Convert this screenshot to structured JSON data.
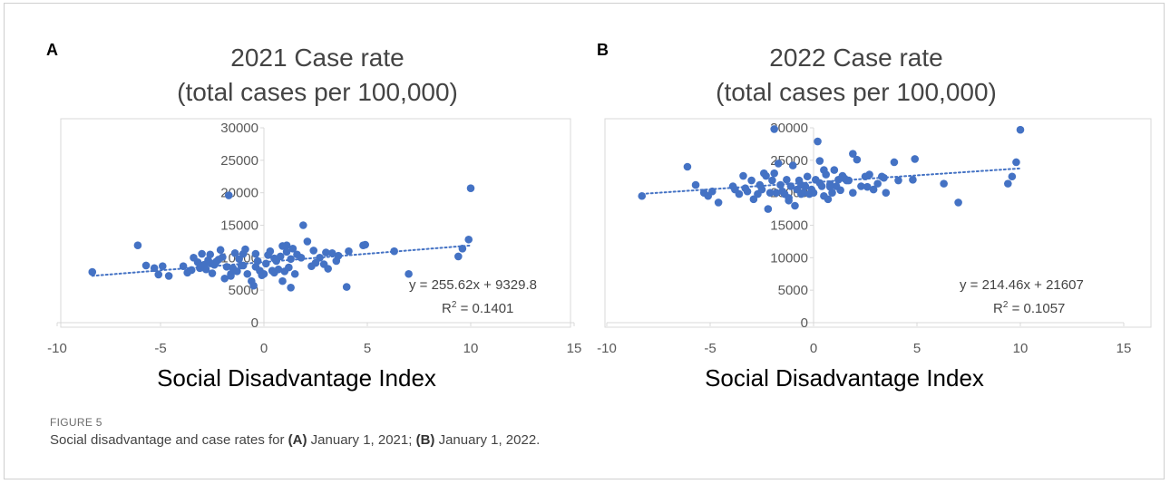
{
  "panels": [
    {
      "letter": "A",
      "title_line1": "2021 Case rate",
      "title_line2": "(total cases per 100,000)",
      "xlabel": "Social Disadvantage Index",
      "equation": "y = 255.62x + 9329.8",
      "r2_prefix": "R",
      "r2_sup": "2",
      "r2_value": " = 0.1401"
    },
    {
      "letter": "B",
      "title_line1": "2022 Case rate",
      "title_line2": "(total cases per 100,000)",
      "xlabel": "Social Disadvantage Index",
      "equation": "y = 214.46x + 21607",
      "r2_prefix": "R",
      "r2_sup": "2",
      "r2_value": " = 0.1057"
    }
  ],
  "figure": {
    "label": "FIGURE 5",
    "caption_pre": "Social disadvantage and case rates for ",
    "caption_a": "(A)",
    "caption_mid": " January 1, 2021; ",
    "caption_b": "(B)",
    "caption_post": " January 1, 2022."
  },
  "colors": {
    "marker": "#4472C4",
    "trend": "#4472C4",
    "axis": "#d9d9d9"
  },
  "chart_data": [
    {
      "type": "scatter",
      "title": "2021 Case rate (total cases per 100,000)",
      "xlabel": "Social Disadvantage Index",
      "ylabel": "",
      "xlim": [
        -10,
        15
      ],
      "ylim": [
        0,
        30000
      ],
      "xticks": [
        -10,
        -5,
        0,
        5,
        10,
        15
      ],
      "yticks": [
        0,
        5000,
        10000,
        15000,
        20000,
        25000,
        30000
      ],
      "grid": "horizontal",
      "trendline": {
        "slope": 255.62,
        "intercept": 9329.8,
        "r2": 0.1401,
        "x_range": [
          -8.3,
          10
        ]
      },
      "x": [
        -8.3,
        -6.1,
        -5.7,
        -5.3,
        -5.1,
        -4.9,
        -4.6,
        -3.9,
        -3.7,
        -3.5,
        -3.4,
        -3.2,
        -3.0,
        -2.9,
        -2.8,
        -2.7,
        -2.6,
        -2.5,
        -2.4,
        -2.3,
        -2.1,
        -2.0,
        -1.9,
        -1.8,
        -1.7,
        -1.6,
        -1.5,
        -1.4,
        -1.3,
        -1.2,
        -1.1,
        -1.0,
        -0.9,
        -0.8,
        -0.6,
        -0.5,
        -0.4,
        -0.3,
        -0.2,
        -0.1,
        0.0,
        0.1,
        0.2,
        0.3,
        0.4,
        0.5,
        0.6,
        0.7,
        0.8,
        0.9,
        1.0,
        1.1,
        1.2,
        1.3,
        1.4,
        1.5,
        1.6,
        1.8,
        1.9,
        2.1,
        2.3,
        2.5,
        2.7,
        2.9,
        3.1,
        3.3,
        3.5,
        3.6,
        4.0,
        4.1,
        4.8,
        4.9,
        6.3,
        7.0,
        9.4,
        9.6,
        9.9,
        10.0,
        -1.6,
        -2.2,
        -0.4,
        0.9,
        1.3,
        2.4,
        3.0,
        -3.1,
        -2.6,
        -1.0,
        0.5,
        1.1
      ],
      "y": [
        7800,
        11900,
        8800,
        8400,
        7400,
        8700,
        7200,
        8700,
        7700,
        8100,
        10000,
        9300,
        10600,
        8900,
        8200,
        9600,
        10500,
        7600,
        8900,
        9400,
        11200,
        10100,
        6800,
        8600,
        19600,
        7500,
        8400,
        10700,
        7900,
        9800,
        8800,
        10600,
        11300,
        7500,
        6400,
        5700,
        8600,
        9500,
        8000,
        7300,
        7500,
        9100,
        10400,
        11000,
        8000,
        9900,
        9500,
        8200,
        10200,
        6400,
        7900,
        11900,
        8500,
        5400,
        11400,
        7500,
        10500,
        10000,
        15000,
        12500,
        8700,
        9200,
        10000,
        9000,
        8300,
        10700,
        9500,
        10300,
        5500,
        11000,
        11900,
        12000,
        11000,
        7500,
        10200,
        11400,
        12800,
        20700,
        7200,
        9700,
        10600,
        11800,
        9800,
        11100,
        10800,
        8400,
        9200,
        8800,
        7700,
        10900
      ]
    },
    {
      "type": "scatter",
      "title": "2022 Case rate (total cases per 100,000)",
      "xlabel": "Social Disadvantage Index",
      "ylabel": "",
      "xlim": [
        -10,
        15
      ],
      "ylim": [
        0,
        30000
      ],
      "xticks": [
        -10,
        -5,
        0,
        5,
        10,
        15
      ],
      "yticks": [
        0,
        5000,
        10000,
        15000,
        20000,
        25000,
        30000
      ],
      "grid": "horizontal",
      "trendline": {
        "slope": 214.46,
        "intercept": 21607,
        "r2": 0.1057,
        "x_range": [
          -8.3,
          10
        ]
      },
      "x": [
        -8.3,
        -6.1,
        -5.7,
        -5.3,
        -5.1,
        -4.9,
        -4.6,
        -3.9,
        -3.8,
        -3.6,
        -3.4,
        -3.2,
        -3.0,
        -2.9,
        -2.7,
        -2.6,
        -2.5,
        -2.3,
        -2.2,
        -2.1,
        -2.0,
        -1.9,
        -1.8,
        -1.7,
        -1.6,
        -1.5,
        -1.4,
        -1.3,
        -1.2,
        -1.1,
        -1.0,
        -0.9,
        -0.8,
        -0.7,
        -0.6,
        -0.5,
        -0.4,
        -0.3,
        -0.2,
        -0.1,
        0.0,
        0.1,
        0.2,
        0.3,
        0.4,
        0.5,
        0.6,
        0.7,
        0.8,
        0.9,
        1.0,
        1.1,
        1.2,
        1.3,
        1.4,
        1.5,
        1.7,
        1.9,
        2.1,
        2.3,
        2.5,
        2.7,
        2.9,
        3.1,
        3.3,
        3.5,
        3.9,
        4.1,
        4.8,
        4.9,
        6.3,
        7.0,
        9.4,
        9.6,
        9.8,
        10.0,
        -1.9,
        -2.4,
        -0.6,
        0.5,
        1.6,
        2.6,
        3.4,
        -3.3,
        -1.2,
        0.8,
        1.9,
        0.3
      ],
      "y": [
        19500,
        24000,
        21200,
        20000,
        19500,
        20200,
        18500,
        21000,
        20500,
        19800,
        22600,
        20200,
        21900,
        19000,
        19800,
        21200,
        20500,
        22600,
        17500,
        20000,
        21900,
        23000,
        20000,
        24500,
        21200,
        20200,
        19800,
        22000,
        18800,
        21000,
        24200,
        18000,
        20500,
        21900,
        21200,
        20000,
        21000,
        22500,
        19800,
        20500,
        20000,
        22000,
        27900,
        24900,
        21000,
        23500,
        22800,
        19000,
        21300,
        20000,
        23500,
        21000,
        22000,
        20400,
        22600,
        22200,
        21900,
        26000,
        25100,
        21000,
        22500,
        22800,
        20500,
        21400,
        22500,
        20000,
        24700,
        21900,
        22000,
        25200,
        21400,
        18500,
        21400,
        22500,
        24700,
        29700,
        29800,
        23000,
        19800,
        19500,
        21900,
        20900,
        22300,
        20700,
        19200,
        20900,
        20000,
        21500
      ]
    }
  ]
}
